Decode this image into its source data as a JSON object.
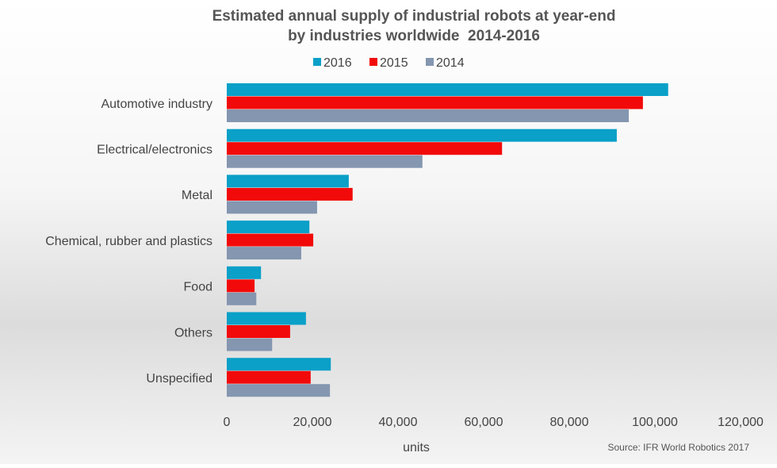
{
  "chart_data": {
    "type": "bar",
    "orientation": "horizontal",
    "title": "Estimated annual supply of industrial robots at year-end",
    "subtitle": "by industries worldwide  2014-2016",
    "xlabel": "units",
    "source": "Source: IFR World Robotics 2017",
    "xlim": [
      0,
      120000
    ],
    "xticks": [
      0,
      20000,
      40000,
      60000,
      80000,
      100000,
      120000
    ],
    "xtick_labels": [
      "0",
      "20,000",
      "40,000",
      "60,000",
      "80,000",
      "100,000",
      "120,000"
    ],
    "grid": false,
    "legend_position": "top",
    "categories": [
      "Automotive industry",
      "Electrical/electronics",
      "Metal",
      "Chemical, rubber and plastics",
      "Food",
      "Others",
      "Unspecified"
    ],
    "series": [
      {
        "name": "2016",
        "color": "#0aa0c8",
        "values": [
          103100,
          91100,
          28500,
          19300,
          8000,
          18500,
          24300
        ]
      },
      {
        "name": "2015",
        "color": "#f20a0a",
        "values": [
          97200,
          64300,
          29400,
          20200,
          6500,
          14800,
          19600
        ]
      },
      {
        "name": "2014",
        "color": "#8496b0",
        "values": [
          93900,
          45700,
          21100,
          17400,
          6900,
          10600,
          24100
        ]
      }
    ]
  }
}
